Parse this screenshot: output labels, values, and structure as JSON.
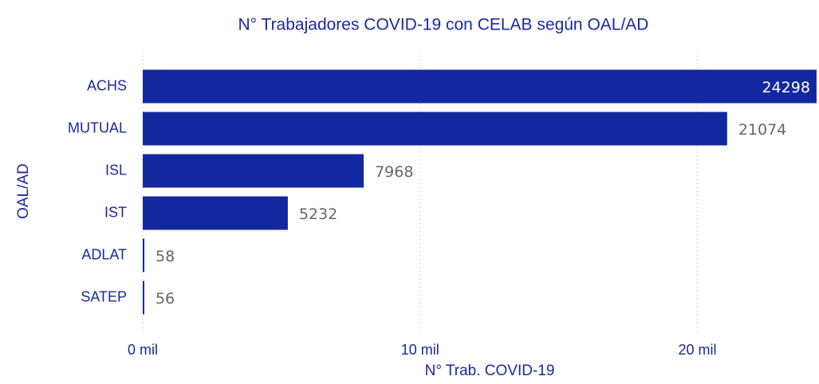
{
  "chart_data": {
    "type": "bar",
    "orientation": "horizontal",
    "title": "N° Trabajadores COVID-19 con CELAB según OAL/AD",
    "x_label": "N° Trab. COVID-19",
    "y_label": "OAL/AD",
    "categories": [
      "ACHS",
      "MUTUAL",
      "ISL",
      "IST",
      "ADLAT",
      "SATEP"
    ],
    "values": [
      24298,
      21074,
      7968,
      5232,
      58,
      56
    ],
    "color": "#13289f",
    "xlim": [
      0,
      24300
    ],
    "xticks": [
      {
        "value": 0,
        "label": "0 mil"
      },
      {
        "value": 10000,
        "label": "10 mil"
      },
      {
        "value": 20000,
        "label": "20 mil"
      }
    ],
    "grid": true
  }
}
